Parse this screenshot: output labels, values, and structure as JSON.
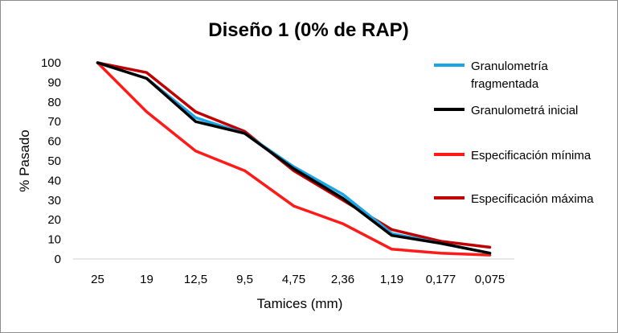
{
  "chart_data": {
    "type": "line",
    "title": "Diseño 1 (0% de RAP)",
    "xlabel": "Tamices (mm)",
    "ylabel": "% Pasado",
    "ylim": [
      0,
      100
    ],
    "yticks": [
      0,
      10,
      20,
      30,
      40,
      50,
      60,
      70,
      80,
      90,
      100
    ],
    "categories": [
      "25",
      "19",
      "12,5",
      "9,5",
      "4,75",
      "2,36",
      "1,19",
      "0,177",
      "0,075"
    ],
    "grid": false,
    "legend_position": "right",
    "series": [
      {
        "name": "Especificación mínima",
        "legend_lines": [
          "Especificación mínima"
        ],
        "color": "#ff1a1a",
        "values": [
          100,
          75,
          55,
          45,
          27,
          18,
          5,
          3,
          2
        ]
      },
      {
        "name": "Especificación máxima",
        "legend_lines": [
          "Especificación máxima"
        ],
        "color": "#c00000",
        "values": [
          100,
          95,
          75,
          65,
          45,
          30,
          15,
          9,
          6
        ]
      },
      {
        "name": "Granulometría fragmentada",
        "legend_lines": [
          "Granulometría",
          "fragmentada"
        ],
        "color": "#1aa6e6",
        "values": [
          100,
          92,
          72,
          64,
          47,
          33,
          13,
          8,
          3
        ]
      },
      {
        "name": "Granulometrá inicial",
        "legend_lines": [
          "Granulometrá inicial"
        ],
        "color": "#000000",
        "values": [
          100,
          92,
          70,
          64,
          46,
          31,
          12,
          8,
          3
        ]
      }
    ],
    "legend_order": [
      2,
      3,
      0,
      1
    ]
  }
}
